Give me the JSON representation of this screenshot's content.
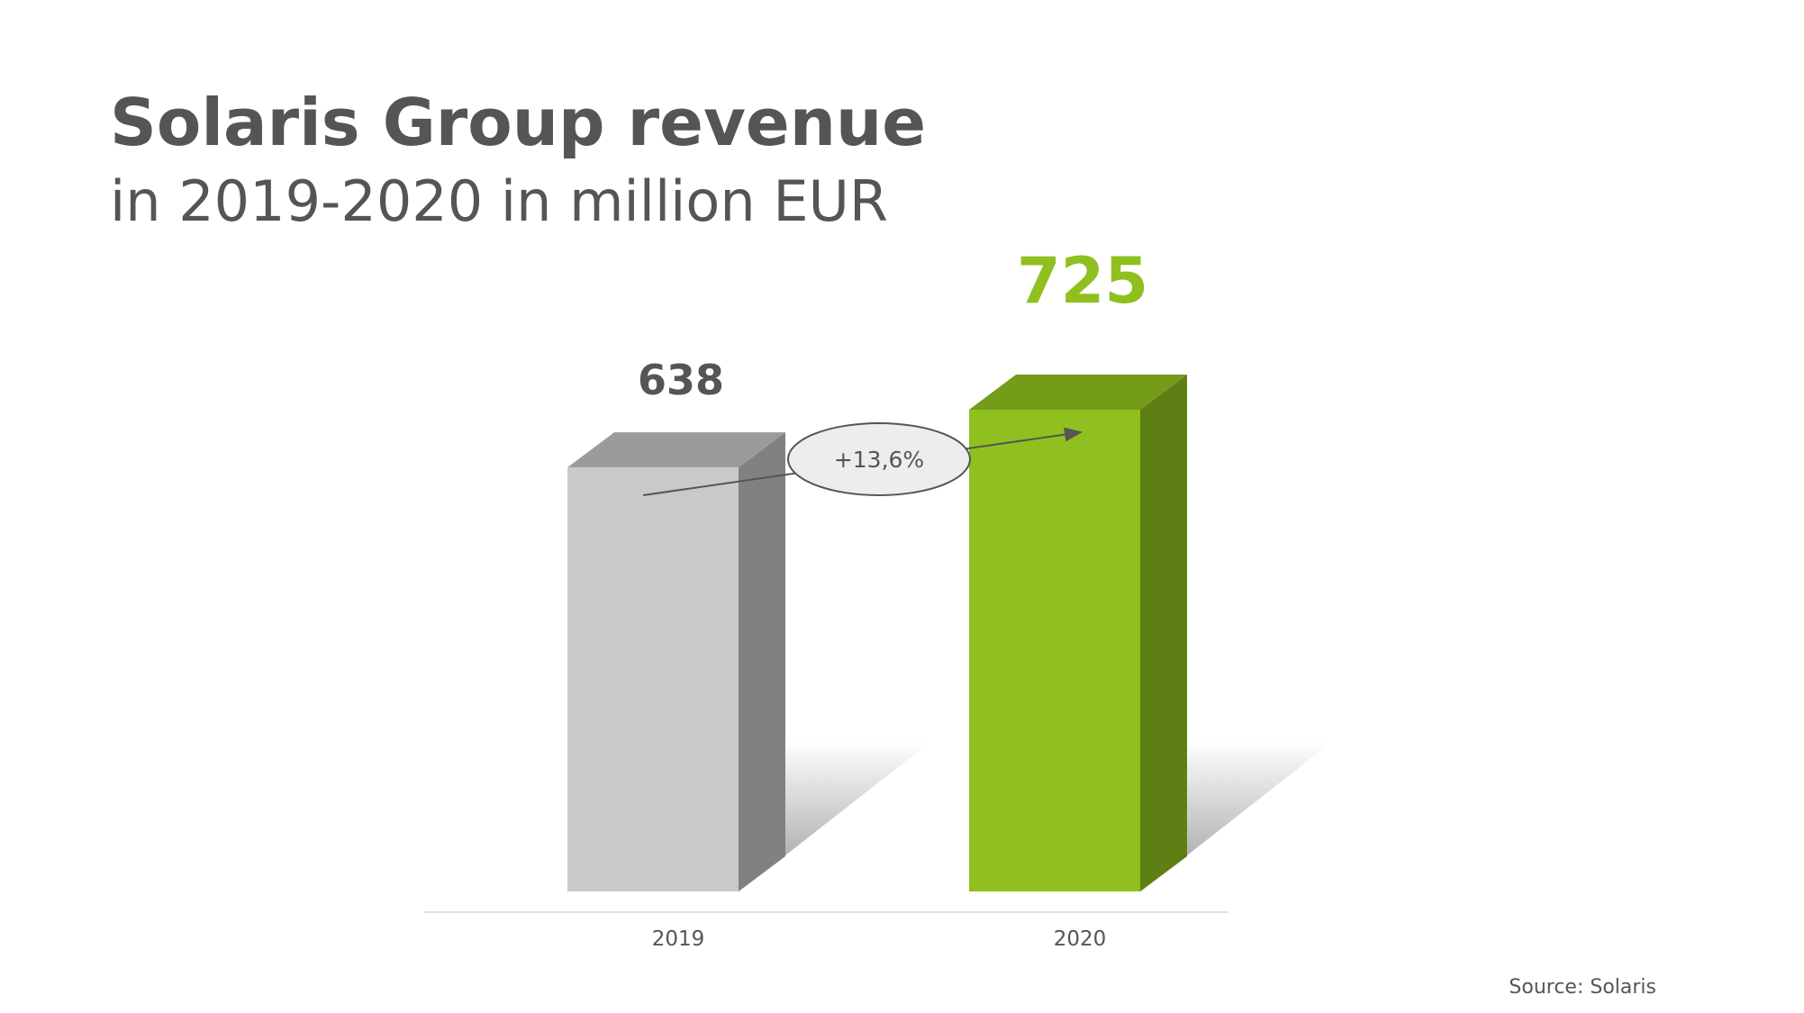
{
  "chart_data": {
    "type": "bar3d",
    "title": "Solaris Group revenue",
    "subtitle": "in 2019-2020 in million EUR",
    "categories": [
      "2019",
      "2020"
    ],
    "values": [
      638,
      725
    ],
    "colors": [
      "#c8cac9",
      "#8fc01f"
    ],
    "label_colors": [
      "#555555",
      "#8fc01f"
    ],
    "annotation": "+13,6%",
    "source": "Source: Solaris"
  }
}
